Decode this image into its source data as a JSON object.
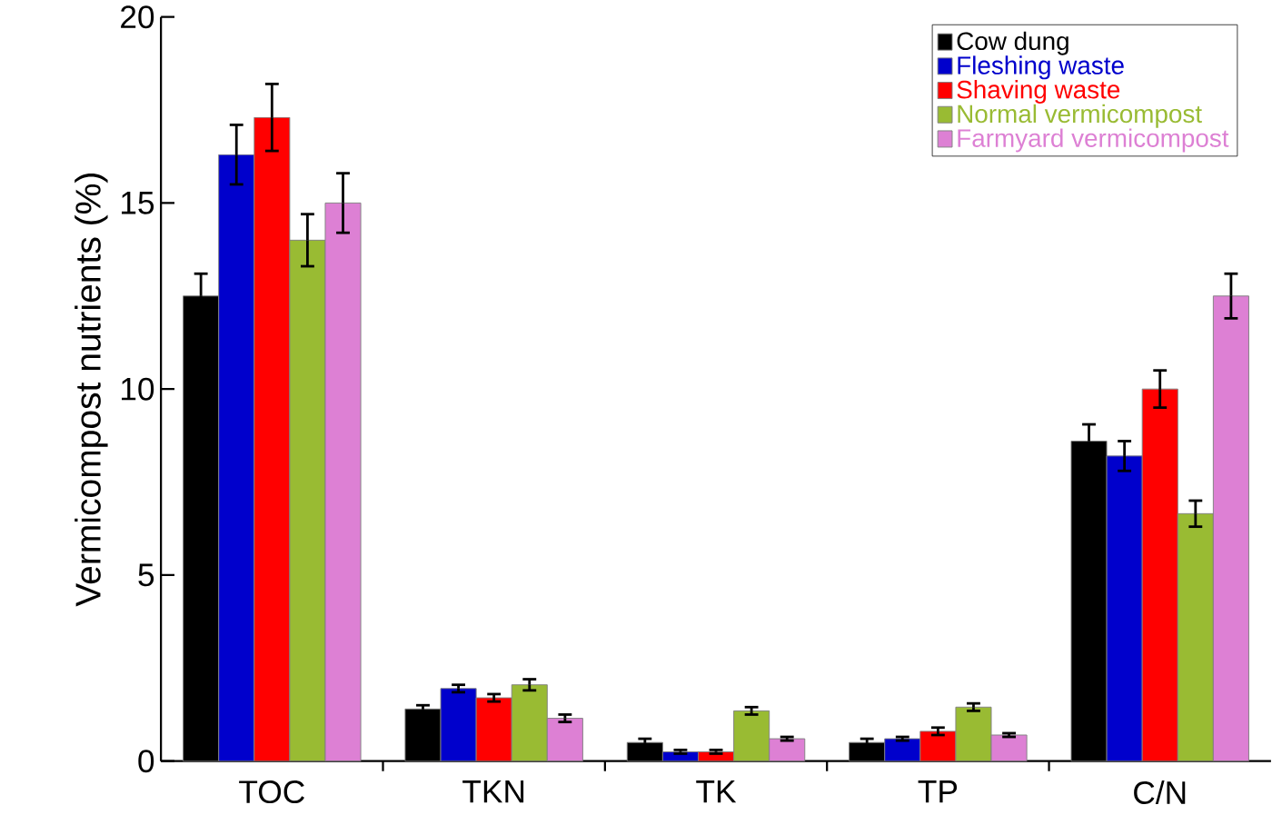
{
  "chart_data": {
    "type": "bar",
    "ylabel": "Vermicompost nutrients (%)",
    "categories": [
      "TOC",
      "TKN",
      "TK",
      "TP",
      "C/N"
    ],
    "series": [
      {
        "name": "Cow dung",
        "color": "#000000",
        "values": [
          12.5,
          1.4,
          0.5,
          0.5,
          8.6
        ],
        "errors": [
          0.6,
          0.1,
          0.1,
          0.1,
          0.45
        ]
      },
      {
        "name": "Fleshing waste",
        "color": "#0000cc",
        "values": [
          16.3,
          1.95,
          0.25,
          0.6,
          8.2
        ],
        "errors": [
          0.8,
          0.1,
          0.05,
          0.05,
          0.4
        ]
      },
      {
        "name": "Shaving waste",
        "color": "#ff0000",
        "values": [
          17.3,
          1.7,
          0.25,
          0.8,
          10.0
        ],
        "errors": [
          0.9,
          0.1,
          0.05,
          0.1,
          0.5
        ]
      },
      {
        "name": "Normal vermicompost",
        "color": "#99bb33",
        "values": [
          14.0,
          2.05,
          1.35,
          1.45,
          6.65
        ],
        "errors": [
          0.7,
          0.15,
          0.1,
          0.1,
          0.35
        ]
      },
      {
        "name": "Farmyard vermicompost",
        "color": "#dd80d4",
        "values": [
          15.0,
          1.15,
          0.6,
          0.7,
          12.5
        ],
        "errors": [
          0.8,
          0.1,
          0.05,
          0.05,
          0.6
        ]
      }
    ],
    "ylim": [
      0,
      20
    ],
    "yticks": [
      0,
      5,
      10,
      15,
      20
    ],
    "legend": "top right",
    "grid": false
  }
}
